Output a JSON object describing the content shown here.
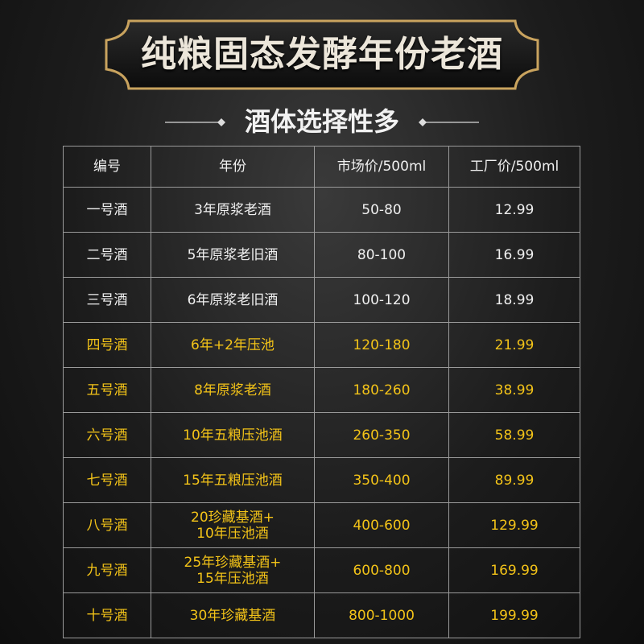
{
  "header": {
    "title": "纯粮固态发酵年份老酒",
    "subtitle": "酒体选择性多"
  },
  "table": {
    "columns": [
      "编号",
      "年份",
      "市场价/500ml",
      "工厂价/500ml"
    ],
    "rows": [
      [
        "一号酒",
        "3年原浆老酒",
        "50-80",
        "12.99"
      ],
      [
        "二号酒",
        "5年原浆老旧酒",
        "80-100",
        "16.99"
      ],
      [
        "三号酒",
        "6年原浆老旧酒",
        "100-120",
        "18.99"
      ],
      [
        "四号酒",
        "6年+2年压池",
        "120-180",
        "21.99"
      ],
      [
        "五号酒",
        "8年原浆老酒",
        "180-260",
        "38.99"
      ],
      [
        "六号酒",
        "10年五粮压池酒",
        "260-350",
        "58.99"
      ],
      [
        "七号酒",
        "15年五粮压池酒",
        "350-400",
        "89.99"
      ],
      [
        "八号酒",
        "20珍藏基酒+\n10年压池酒",
        "400-600",
        "129.99"
      ],
      [
        "九号酒",
        "25年珍藏基酒+\n15年压池酒",
        "600-800",
        "169.99"
      ],
      [
        "十号酒",
        "30年珍藏基酒",
        "800-1000",
        "199.99"
      ]
    ]
  }
}
